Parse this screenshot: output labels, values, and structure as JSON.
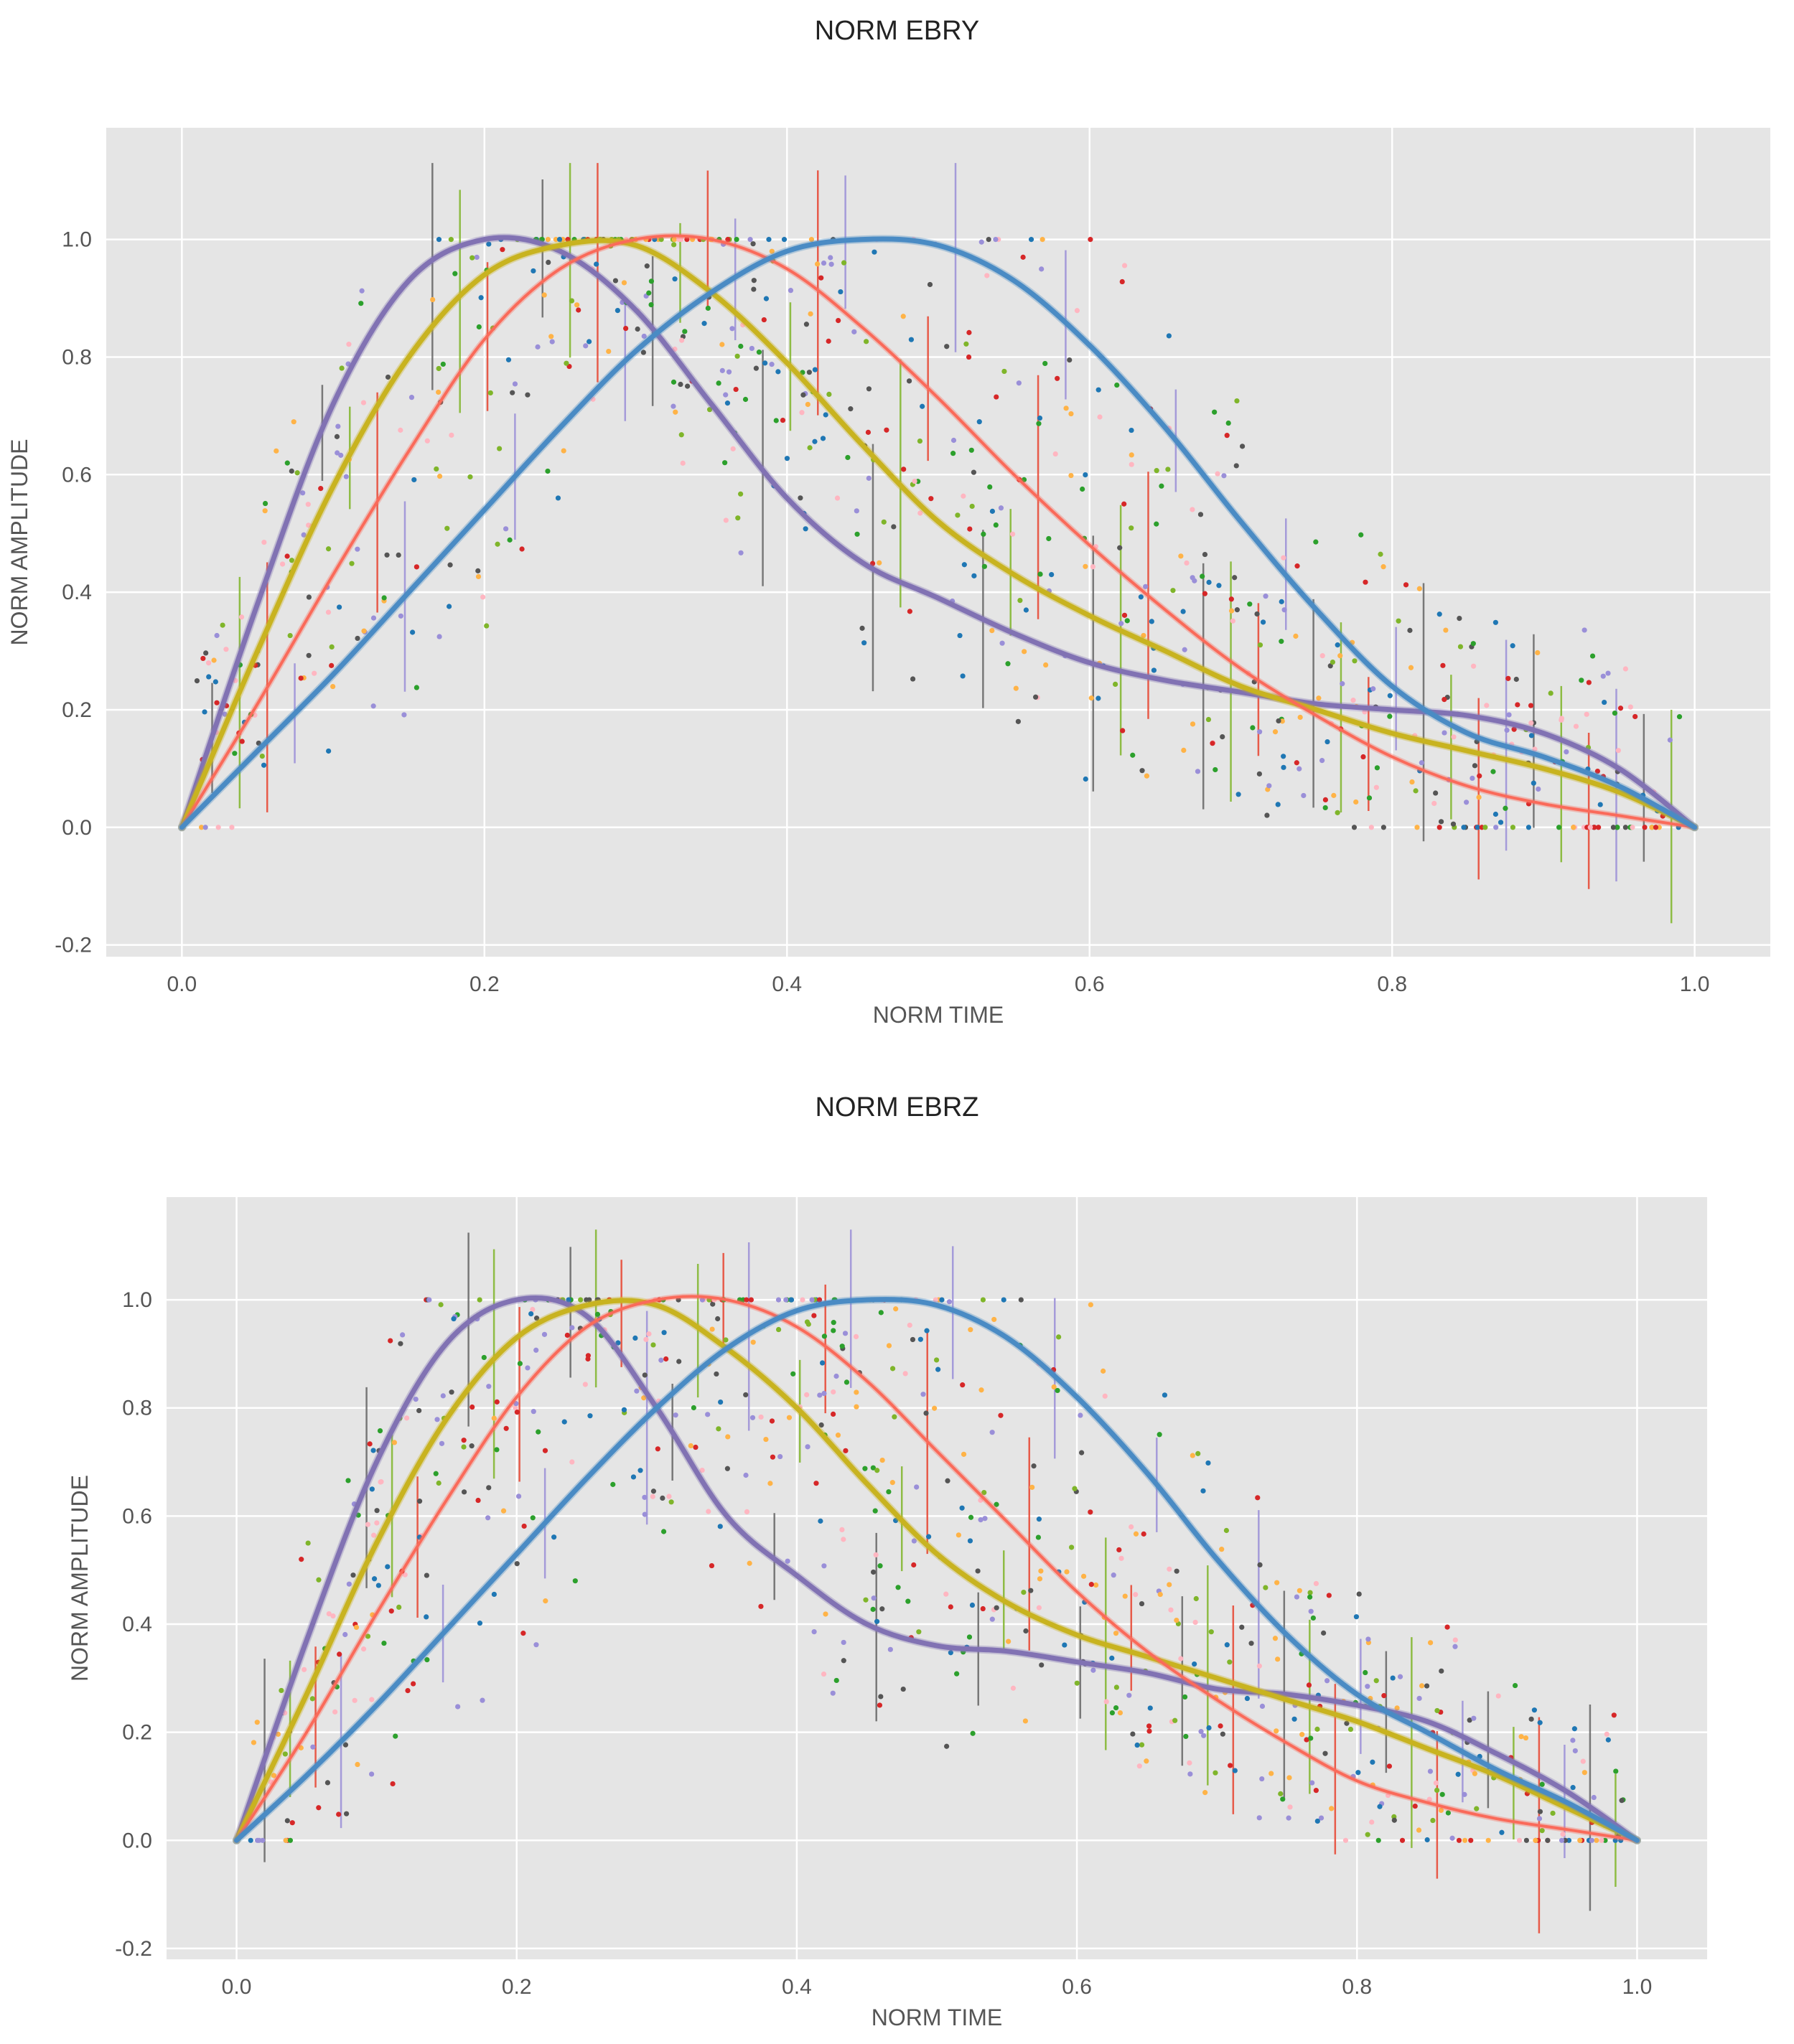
{
  "chart_data": [
    {
      "type": "line",
      "title": "NORM EBRY",
      "xlabel": "NORM TIME",
      "ylabel": "NORM AMPLITUDE",
      "xlim": [
        -0.05,
        1.05
      ],
      "ylim": [
        -0.22,
        1.19
      ],
      "xticks": [
        0.0,
        0.2,
        0.4,
        0.6,
        0.8,
        1.0
      ],
      "xtick_labels": [
        "0.0",
        "0.2",
        "0.4",
        "0.6",
        "0.8",
        "1.0"
      ],
      "yticks": [
        -0.2,
        0.0,
        0.2,
        0.4,
        0.6,
        0.8,
        1.0
      ],
      "ytick_labels": [
        "-0.2",
        "0.0",
        "0.2",
        "0.4",
        "0.6",
        "0.8",
        "1.0"
      ],
      "grid": true,
      "background": "#e5e5e5",
      "x": [
        0.0,
        0.05,
        0.1,
        0.15,
        0.2,
        0.25,
        0.3,
        0.35,
        0.4,
        0.45,
        0.5,
        0.55,
        0.6,
        0.65,
        0.7,
        0.75,
        0.8,
        0.85,
        0.9,
        0.95,
        1.0
      ],
      "series": [
        {
          "name": "purple",
          "color": "#8172b3",
          "values": [
            0.0,
            0.38,
            0.72,
            0.93,
            1.0,
            0.98,
            0.88,
            0.72,
            0.56,
            0.45,
            0.39,
            0.33,
            0.28,
            0.25,
            0.23,
            0.21,
            0.2,
            0.19,
            0.16,
            0.1,
            0.0
          ]
        },
        {
          "name": "gold",
          "color": "#c8b320",
          "values": [
            0.0,
            0.3,
            0.58,
            0.8,
            0.94,
            0.99,
            0.99,
            0.91,
            0.79,
            0.65,
            0.52,
            0.43,
            0.36,
            0.3,
            0.24,
            0.2,
            0.16,
            0.13,
            0.1,
            0.06,
            0.0
          ]
        },
        {
          "name": "red",
          "color": "#fa6a5a",
          "values": [
            0.0,
            0.21,
            0.43,
            0.64,
            0.83,
            0.95,
            1.0,
            1.0,
            0.95,
            0.85,
            0.73,
            0.6,
            0.48,
            0.37,
            0.27,
            0.19,
            0.12,
            0.07,
            0.04,
            0.02,
            0.0
          ]
        },
        {
          "name": "blue",
          "color": "#4a8bc4",
          "values": [
            0.0,
            0.13,
            0.26,
            0.4,
            0.54,
            0.68,
            0.81,
            0.91,
            0.98,
            1.0,
            0.99,
            0.93,
            0.82,
            0.68,
            0.52,
            0.37,
            0.24,
            0.16,
            0.12,
            0.07,
            0.0
          ]
        }
      ]
    },
    {
      "type": "line",
      "title": "NORM EBRZ",
      "xlabel": "NORM TIME",
      "ylabel": "NORM AMPLITUDE",
      "xlim": [
        -0.05,
        1.05
      ],
      "ylim": [
        -0.22,
        1.19
      ],
      "xticks": [
        0.0,
        0.2,
        0.4,
        0.6,
        0.8,
        1.0
      ],
      "xtick_labels": [
        "0.0",
        "0.2",
        "0.4",
        "0.6",
        "0.8",
        "1.0"
      ],
      "yticks": [
        -0.2,
        0.0,
        0.2,
        0.4,
        0.6,
        0.8,
        1.0
      ],
      "ytick_labels": [
        "-0.2",
        "0.0",
        "0.2",
        "0.4",
        "0.6",
        "0.8",
        "1.0"
      ],
      "grid": true,
      "background": "#e5e5e5",
      "x": [
        0.0,
        0.05,
        0.1,
        0.15,
        0.2,
        0.25,
        0.3,
        0.35,
        0.4,
        0.45,
        0.5,
        0.55,
        0.6,
        0.65,
        0.7,
        0.75,
        0.8,
        0.85,
        0.9,
        0.95,
        1.0
      ],
      "series": [
        {
          "name": "purple",
          "color": "#8172b3",
          "values": [
            0.0,
            0.37,
            0.7,
            0.92,
            1.0,
            0.97,
            0.8,
            0.6,
            0.49,
            0.4,
            0.36,
            0.35,
            0.33,
            0.31,
            0.28,
            0.27,
            0.25,
            0.22,
            0.16,
            0.09,
            0.0
          ]
        },
        {
          "name": "gold",
          "color": "#c8b320",
          "values": [
            0.0,
            0.27,
            0.55,
            0.78,
            0.93,
            0.99,
            0.99,
            0.91,
            0.8,
            0.66,
            0.53,
            0.44,
            0.38,
            0.34,
            0.3,
            0.26,
            0.22,
            0.17,
            0.12,
            0.06,
            0.0
          ]
        },
        {
          "name": "red",
          "color": "#fa6a5a",
          "values": [
            0.0,
            0.2,
            0.42,
            0.63,
            0.82,
            0.95,
            1.0,
            1.0,
            0.95,
            0.85,
            0.72,
            0.59,
            0.46,
            0.35,
            0.26,
            0.18,
            0.11,
            0.07,
            0.04,
            0.02,
            0.0
          ]
        },
        {
          "name": "blue",
          "color": "#4a8bc4",
          "values": [
            0.0,
            0.12,
            0.25,
            0.39,
            0.53,
            0.67,
            0.8,
            0.91,
            0.98,
            1.0,
            0.99,
            0.93,
            0.82,
            0.68,
            0.52,
            0.38,
            0.27,
            0.2,
            0.13,
            0.07,
            0.0
          ]
        }
      ]
    }
  ],
  "scatter_colors": [
    "#1f77b4",
    "#d62728",
    "#2ca02c",
    "#555555",
    "#ffb347",
    "#ffb6c1",
    "#9a8fd8",
    "#7fb52a"
  ]
}
